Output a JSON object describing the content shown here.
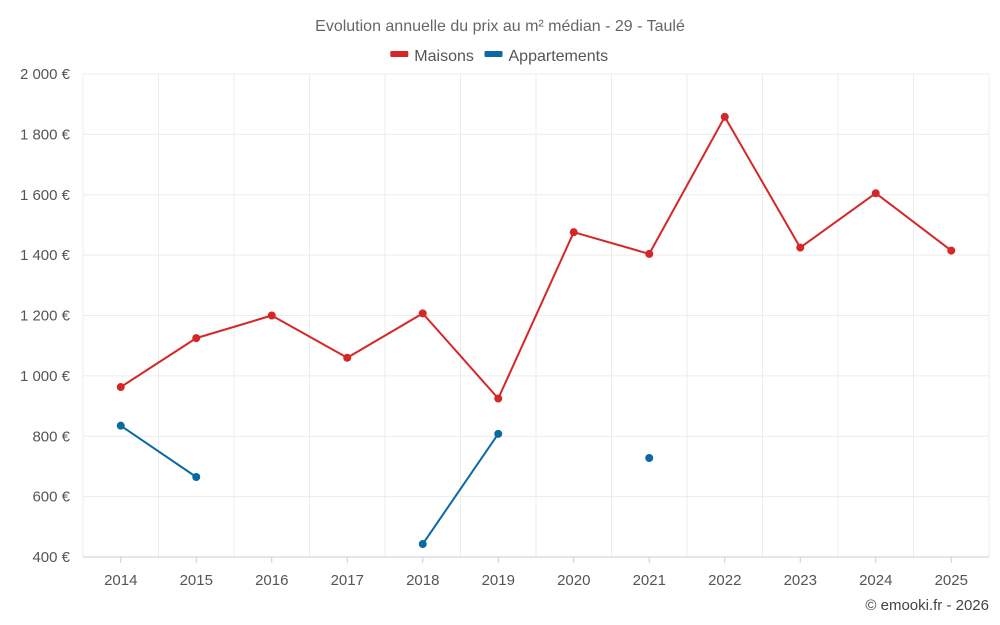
{
  "chart_data": {
    "type": "line",
    "title": "Evolution annuelle du prix au m² médian - 29 - Taulé",
    "xlabel": "",
    "ylabel": "",
    "categories": [
      "2014",
      "2015",
      "2016",
      "2017",
      "2018",
      "2019",
      "2020",
      "2021",
      "2022",
      "2023",
      "2024",
      "2025"
    ],
    "ylim": [
      400,
      2000
    ],
    "yticks": [
      400,
      600,
      800,
      1000,
      1200,
      1400,
      1600,
      1800,
      2000
    ],
    "ytick_labels": [
      "400 €",
      "600 €",
      "800 €",
      "1 000 €",
      "1 200 €",
      "1 400 €",
      "1 600 €",
      "1 800 €",
      "2 000 €"
    ],
    "grid": true,
    "legend_position": "top-center",
    "series": [
      {
        "name": "Maisons",
        "color": "#d62728",
        "values": [
          963,
          1125,
          1200,
          1060,
          1207,
          925,
          1476,
          1404,
          1858,
          1425,
          1605,
          1415
        ]
      },
      {
        "name": "Appartements",
        "color": "#0a6aa1",
        "values": [
          835,
          665,
          null,
          null,
          443,
          808,
          null,
          728,
          null,
          null,
          null,
          null
        ]
      }
    ]
  },
  "credit": "© emooki.fr - 2026"
}
